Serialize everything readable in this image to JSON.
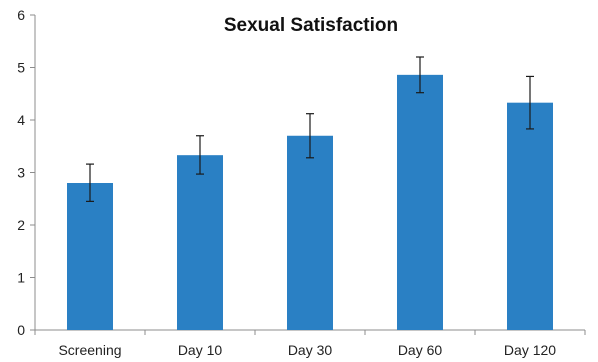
{
  "chart_data": {
    "type": "bar",
    "title": "Sexual Satisfaction",
    "xlabel": "",
    "ylabel": "",
    "categories": [
      "Screening",
      "Day 10",
      "Day 30",
      "Day 60",
      "Day 120"
    ],
    "values": [
      2.8,
      3.33,
      3.7,
      4.86,
      4.33
    ],
    "error_bars": [
      {
        "low": 2.45,
        "high": 3.16
      },
      {
        "low": 2.97,
        "high": 3.7
      },
      {
        "low": 3.28,
        "high": 4.12
      },
      {
        "low": 4.52,
        "high": 5.2
      },
      {
        "low": 3.83,
        "high": 4.83
      }
    ],
    "ylim": [
      0,
      6
    ],
    "yticks": [
      "0",
      "1",
      "2",
      "3",
      "4",
      "5",
      "6"
    ],
    "grid": false,
    "legend": "none",
    "bar_color": "#2a80c4"
  }
}
